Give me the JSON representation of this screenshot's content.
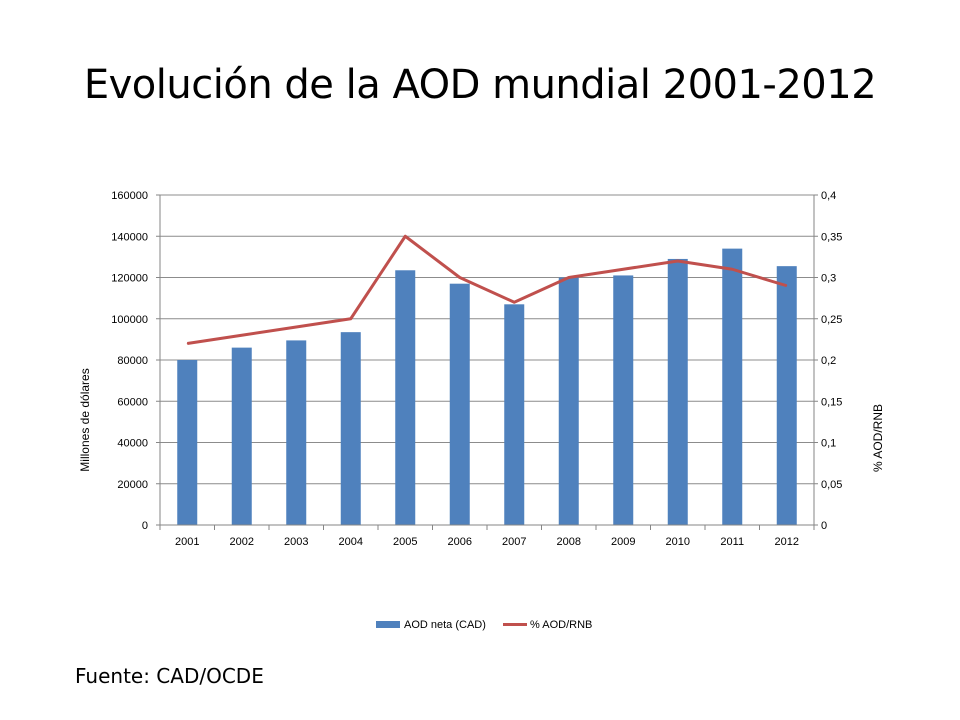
{
  "title": "Evolución de la AOD mundial 2001-2012",
  "source": "Fuente: CAD/OCDE",
  "colors": {
    "bar": "#4f81bd",
    "line": "#c0504d",
    "grid": "#8c8c8c",
    "axis": "#868686"
  },
  "chart_data": {
    "type": "bar",
    "categories": [
      "2001",
      "2002",
      "2003",
      "2004",
      "2005",
      "2006",
      "2007",
      "2008",
      "2009",
      "2010",
      "2011",
      "2012"
    ],
    "series": [
      {
        "name": "AOD neta (CAD)",
        "type": "bar",
        "axis": "left",
        "values": [
          80000,
          86000,
          89500,
          93500,
          123500,
          117000,
          107000,
          120000,
          121000,
          129000,
          134000,
          125500
        ]
      },
      {
        "name": "% AOD/RNB",
        "type": "line",
        "axis": "right",
        "values": [
          0.22,
          0.23,
          0.24,
          0.25,
          0.35,
          0.3,
          0.27,
          0.3,
          0.31,
          0.32,
          0.31,
          0.29
        ]
      }
    ],
    "ylabel": "Millones de dólares",
    "y2label": "% AOD/RNB",
    "ylim": [
      0,
      160000
    ],
    "y2lim": [
      0,
      0.4
    ],
    "yticks": [
      "0",
      "20000",
      "40000",
      "60000",
      "80000",
      "100000",
      "120000",
      "140000",
      "160000"
    ],
    "y2ticks": [
      "0",
      "0,05",
      "0,1",
      "0,15",
      "0,2",
      "0,25",
      "0,3",
      "0,35",
      "0,4"
    ],
    "grid": true,
    "legend": "bottom"
  }
}
